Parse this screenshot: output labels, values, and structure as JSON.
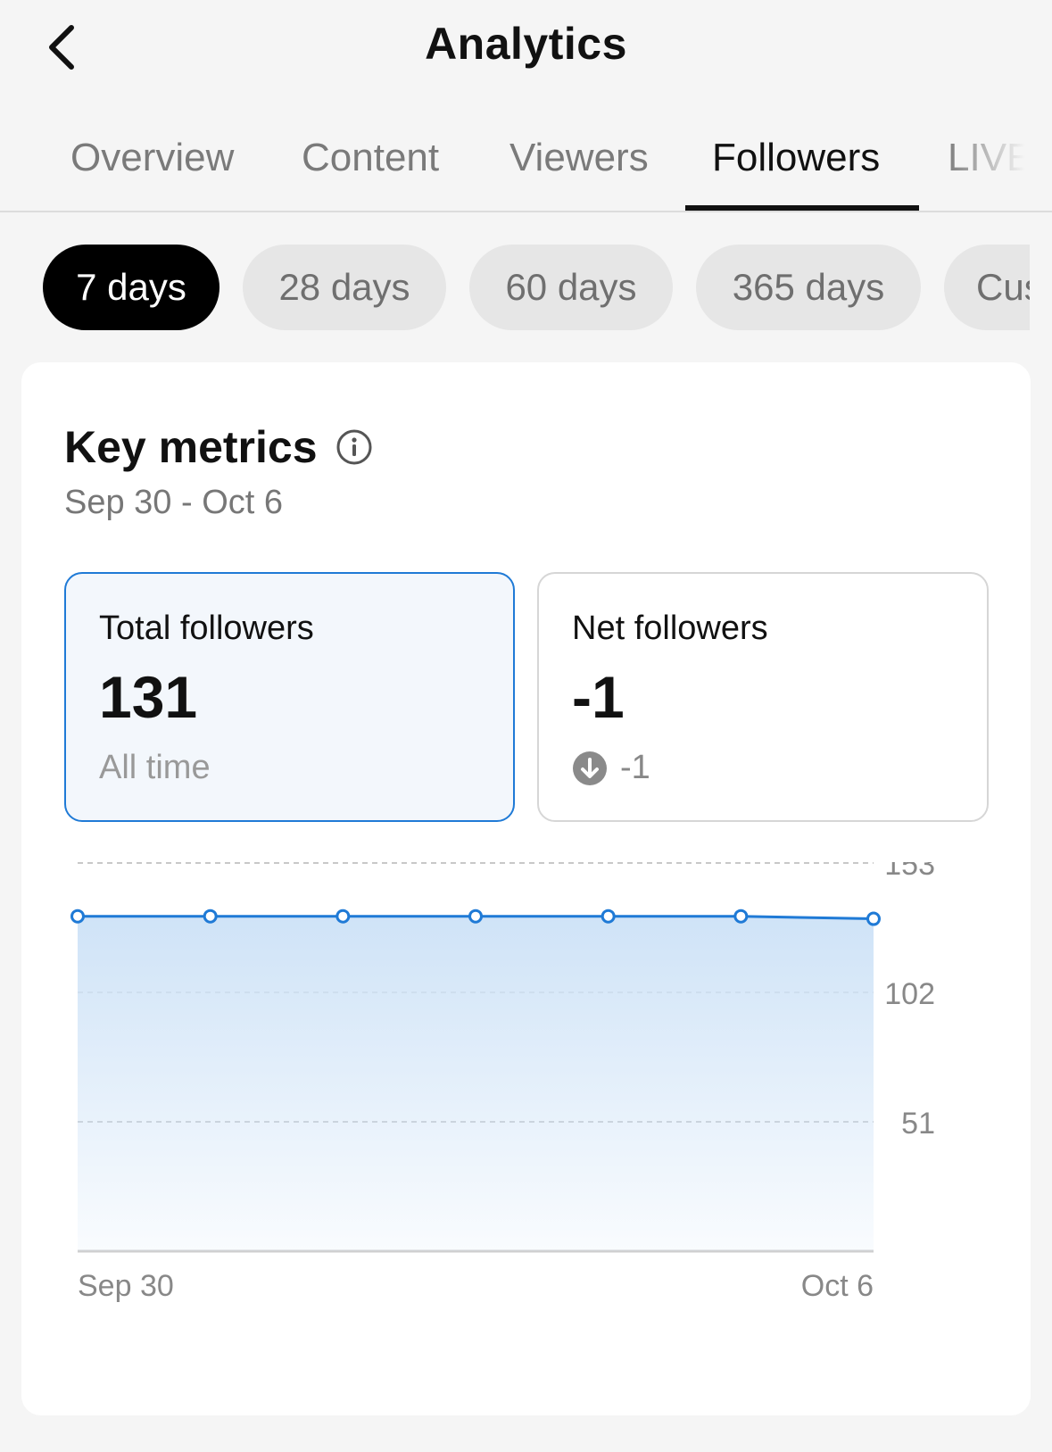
{
  "header": {
    "title": "Analytics",
    "back_icon": "chevron-left-icon"
  },
  "tabs": [
    {
      "label": "Overview",
      "active": false
    },
    {
      "label": "Content",
      "active": false
    },
    {
      "label": "Viewers",
      "active": false
    },
    {
      "label": "Followers",
      "active": true
    },
    {
      "label": "LIVE",
      "active": false
    }
  ],
  "ranges": [
    {
      "label": "7 days",
      "active": true
    },
    {
      "label": "28 days",
      "active": false
    },
    {
      "label": "60 days",
      "active": false
    },
    {
      "label": "365 days",
      "active": false
    },
    {
      "label": "Custom",
      "active": false
    }
  ],
  "key_metrics": {
    "title": "Key metrics",
    "info_icon": "info-icon",
    "date_range": "Sep 30 - Oct 6",
    "total": {
      "label": "Total followers",
      "value": "131",
      "sub": "All time"
    },
    "net": {
      "label": "Net followers",
      "value": "-1",
      "delta": "-1",
      "delta_icon": "arrow-down-circle-icon"
    }
  },
  "colors": {
    "accent": "#1f7ad6",
    "fill_top": "#cfe3f7",
    "active_chip": "#000000"
  },
  "chart_data": {
    "type": "area",
    "x": [
      "Sep 30",
      "Oct 1",
      "Oct 2",
      "Oct 3",
      "Oct 4",
      "Oct 5",
      "Oct 6"
    ],
    "series": [
      {
        "values": [
          132,
          132,
          132,
          132,
          132,
          132,
          131
        ]
      }
    ],
    "x_tick_labels": [
      "Sep 30",
      "Oct 6"
    ],
    "y_ticks": [
      51,
      102,
      153
    ],
    "ylim": [
      0,
      153
    ],
    "grid": true,
    "y_axis_side": "right"
  }
}
